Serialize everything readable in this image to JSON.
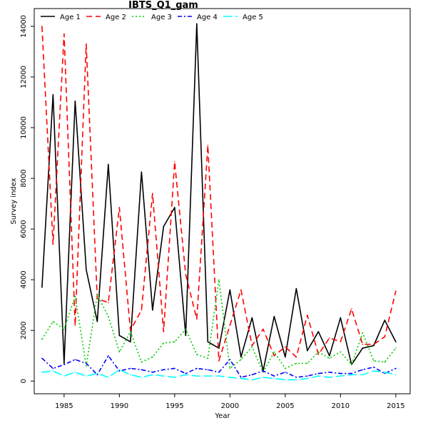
{
  "chart_data": {
    "type": "line",
    "title": "IBTS_Q1_gam",
    "xlabel": "Year",
    "ylabel": "Survey index",
    "xlim": [
      1982.3,
      2016.3
    ],
    "ylim": [
      -500,
      14700
    ],
    "x_ticks": [
      1985,
      1990,
      1995,
      2000,
      2005,
      2010,
      2015
    ],
    "y_ticks": [
      0,
      2000,
      4000,
      6000,
      8000,
      10000,
      12000,
      14000
    ],
    "legend_position": "top",
    "x": [
      1983,
      1984,
      1985,
      1986,
      1987,
      1988,
      1989,
      1990,
      1991,
      1992,
      1993,
      1994,
      1995,
      1996,
      1997,
      1998,
      1999,
      2000,
      2001,
      2002,
      2003,
      2004,
      2005,
      2006,
      2007,
      2008,
      2009,
      2010,
      2011,
      2012,
      2013,
      2014,
      2015
    ],
    "series": [
      {
        "name": "Age 1",
        "color": "#000000",
        "dash": "solid",
        "values": [
          3700,
          11300,
          700,
          11050,
          4400,
          2350,
          8550,
          1800,
          1550,
          8250,
          2800,
          6100,
          6850,
          1800,
          14100,
          1550,
          1300,
          3600,
          950,
          2500,
          400,
          2550,
          950,
          3650,
          1200,
          1950,
          1000,
          2500,
          650,
          1300,
          1400,
          2400,
          1550
        ]
      },
      {
        "name": "Age 2",
        "color": "#ff0000",
        "dash": "dashed",
        "values": [
          14000,
          5400,
          13700,
          2200,
          13300,
          3250,
          3100,
          6850,
          2000,
          2800,
          7400,
          1950,
          8650,
          4200,
          2450,
          9300,
          800,
          2200,
          3600,
          1400,
          2050,
          1000,
          1350,
          950,
          2600,
          1050,
          1700,
          1550,
          2850,
          1450,
          1450,
          1750,
          3550
        ]
      },
      {
        "name": "Age 3",
        "color": "#00cc00",
        "dash": "dotted",
        "values": [
          1650,
          2350,
          2050,
          3350,
          600,
          3400,
          2550,
          1150,
          1950,
          750,
          950,
          1500,
          1550,
          2050,
          1050,
          900,
          4000,
          500,
          850,
          1350,
          350,
          1150,
          500,
          700,
          700,
          1150,
          900,
          1150,
          650,
          1900,
          800,
          750,
          1300
        ]
      },
      {
        "name": "Age 4",
        "color": "#0000ff",
        "dash": "dashdot",
        "values": [
          900,
          500,
          650,
          850,
          700,
          250,
          1000,
          400,
          500,
          450,
          350,
          450,
          500,
          300,
          500,
          450,
          350,
          850,
          150,
          250,
          400,
          200,
          350,
          150,
          200,
          300,
          350,
          300,
          300,
          450,
          550,
          300,
          500
        ]
      },
      {
        "name": "Age 5",
        "color": "#00ffff",
        "dash": "longdash",
        "values": [
          350,
          400,
          200,
          350,
          200,
          300,
          150,
          450,
          250,
          150,
          250,
          200,
          150,
          250,
          200,
          200,
          200,
          150,
          100,
          50,
          150,
          100,
          50,
          50,
          100,
          200,
          150,
          200,
          250,
          250,
          400,
          350,
          250
        ]
      }
    ]
  }
}
